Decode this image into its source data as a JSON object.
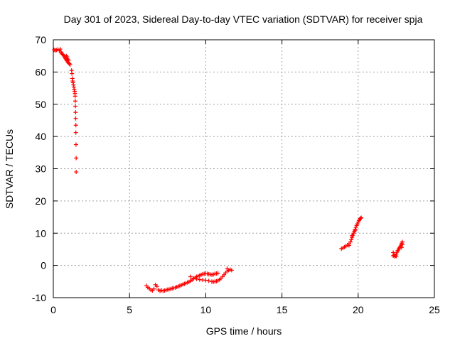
{
  "chart_data": {
    "type": "scatter",
    "title": "Day 301 of 2023, Sidereal Day-to-day VTEC variation (SDTVAR) for receiver spja",
    "xlabel": "GPS time / hours",
    "ylabel": "SDTVAR / TECUs",
    "xlim": [
      0,
      25
    ],
    "ylim": [
      -10,
      70
    ],
    "x_ticks": [
      0,
      5,
      10,
      15,
      20,
      25
    ],
    "y_ticks": [
      -10,
      0,
      10,
      20,
      30,
      40,
      50,
      60,
      70
    ],
    "grid": true,
    "marker": "+",
    "marker_color": "#ff0000",
    "series": [
      {
        "name": "SDTVAR",
        "points": [
          [
            0.05,
            66.9
          ],
          [
            0.12,
            66.7
          ],
          [
            0.2,
            66.8
          ],
          [
            0.3,
            67.0
          ],
          [
            0.4,
            66.6
          ],
          [
            0.45,
            67.1
          ],
          [
            0.5,
            66.2
          ],
          [
            0.55,
            65.8
          ],
          [
            0.6,
            65.5
          ],
          [
            0.65,
            65.3
          ],
          [
            0.7,
            65.0
          ],
          [
            0.75,
            64.6
          ],
          [
            0.8,
            64.2
          ],
          [
            0.85,
            63.8
          ],
          [
            0.9,
            63.5
          ],
          [
            0.95,
            63.1
          ],
          [
            1.0,
            62.8
          ],
          [
            0.85,
            65.0
          ],
          [
            0.9,
            64.7
          ],
          [
            0.95,
            64.0
          ],
          [
            1.0,
            63.6
          ],
          [
            1.05,
            62.6
          ],
          [
            1.1,
            62.3
          ],
          [
            1.2,
            60.5
          ],
          [
            1.22,
            59.5
          ],
          [
            1.25,
            58.0
          ],
          [
            1.27,
            57.2
          ],
          [
            1.3,
            56.7
          ],
          [
            1.32,
            56.0
          ],
          [
            1.35,
            55.3
          ],
          [
            1.37,
            54.6
          ],
          [
            1.4,
            54.0
          ],
          [
            1.42,
            53.3
          ],
          [
            1.43,
            52.5
          ],
          [
            1.44,
            51.0
          ],
          [
            1.45,
            49.4
          ],
          [
            1.46,
            47.5
          ],
          [
            1.47,
            45.6
          ],
          [
            1.48,
            43.5
          ],
          [
            1.48,
            41.2
          ],
          [
            1.49,
            37.5
          ],
          [
            1.5,
            33.3
          ],
          [
            1.5,
            29.0
          ],
          [
            6.1,
            -6.3
          ],
          [
            6.2,
            -6.8
          ],
          [
            6.3,
            -7.2
          ],
          [
            6.4,
            -7.6
          ],
          [
            6.5,
            -7.8
          ],
          [
            6.6,
            -7.3
          ],
          [
            6.7,
            -6.0
          ],
          [
            6.8,
            -6.5
          ],
          [
            6.9,
            -7.6
          ],
          [
            7.0,
            -7.9
          ],
          [
            7.1,
            -7.7
          ],
          [
            7.2,
            -7.9
          ],
          [
            7.3,
            -7.8
          ],
          [
            7.4,
            -7.6
          ],
          [
            7.5,
            -7.5
          ],
          [
            7.6,
            -7.4
          ],
          [
            7.7,
            -7.3
          ],
          [
            7.8,
            -7.1
          ],
          [
            7.9,
            -7.0
          ],
          [
            8.0,
            -6.9
          ],
          [
            8.1,
            -6.7
          ],
          [
            8.2,
            -6.5
          ],
          [
            8.3,
            -6.3
          ],
          [
            8.4,
            -6.1
          ],
          [
            8.5,
            -5.9
          ],
          [
            8.6,
            -5.7
          ],
          [
            8.7,
            -5.5
          ],
          [
            8.8,
            -5.3
          ],
          [
            8.9,
            -5.1
          ],
          [
            9.0,
            -4.8
          ],
          [
            9.1,
            -4.5
          ],
          [
            9.2,
            -4.1
          ],
          [
            9.3,
            -3.8
          ],
          [
            9.4,
            -3.5
          ],
          [
            9.5,
            -3.3
          ],
          [
            9.6,
            -3.1
          ],
          [
            9.7,
            -2.9
          ],
          [
            9.8,
            -2.7
          ],
          [
            9.9,
            -2.6
          ],
          [
            10.0,
            -2.5
          ],
          [
            10.1,
            -2.6
          ],
          [
            10.2,
            -2.7
          ],
          [
            10.3,
            -2.8
          ],
          [
            10.4,
            -2.9
          ],
          [
            10.5,
            -2.8
          ],
          [
            10.6,
            -2.6
          ],
          [
            10.7,
            -2.5
          ],
          [
            10.8,
            -2.4
          ],
          [
            9.0,
            -3.5
          ],
          [
            9.2,
            -4.0
          ],
          [
            9.4,
            -4.2
          ],
          [
            9.6,
            -4.4
          ],
          [
            9.8,
            -4.5
          ],
          [
            10.0,
            -4.6
          ],
          [
            10.2,
            -4.8
          ],
          [
            10.4,
            -5.0
          ],
          [
            10.5,
            -5.1
          ],
          [
            10.6,
            -5.0
          ],
          [
            10.7,
            -4.9
          ],
          [
            10.8,
            -4.7
          ],
          [
            10.9,
            -4.4
          ],
          [
            11.0,
            -4.0
          ],
          [
            11.1,
            -3.5
          ],
          [
            11.2,
            -2.9
          ],
          [
            11.3,
            -2.3
          ],
          [
            11.4,
            -1.8
          ],
          [
            11.5,
            -1.5
          ],
          [
            11.6,
            -1.3
          ],
          [
            11.7,
            -1.5
          ],
          [
            11.4,
            -1.0
          ],
          [
            18.9,
            5.2
          ],
          [
            19.0,
            5.4
          ],
          [
            19.1,
            5.7
          ],
          [
            19.2,
            6.0
          ],
          [
            19.3,
            6.3
          ],
          [
            19.4,
            6.7
          ],
          [
            19.5,
            7.3
          ],
          [
            19.55,
            8.0
          ],
          [
            19.6,
            8.7
          ],
          [
            19.65,
            9.4
          ],
          [
            19.7,
            10.0
          ],
          [
            19.75,
            10.6
          ],
          [
            19.8,
            11.2
          ],
          [
            19.85,
            11.8
          ],
          [
            19.9,
            12.4
          ],
          [
            19.95,
            12.9
          ],
          [
            20.0,
            13.4
          ],
          [
            20.05,
            13.9
          ],
          [
            20.1,
            14.3
          ],
          [
            20.15,
            14.6
          ],
          [
            20.2,
            14.8
          ],
          [
            19.4,
            6.2
          ],
          [
            19.6,
            9.2
          ],
          [
            19.8,
            10.9
          ],
          [
            22.3,
            4.0
          ],
          [
            22.35,
            3.2
          ],
          [
            22.4,
            2.8
          ],
          [
            22.45,
            3.0
          ],
          [
            22.5,
            3.5
          ],
          [
            22.55,
            4.1
          ],
          [
            22.6,
            4.6
          ],
          [
            22.65,
            5.0
          ],
          [
            22.7,
            5.4
          ],
          [
            22.75,
            5.8
          ],
          [
            22.8,
            6.3
          ],
          [
            22.85,
            6.9
          ],
          [
            22.9,
            7.3
          ],
          [
            22.9,
            6.5
          ],
          [
            22.85,
            5.6
          ],
          [
            22.3,
            3.0
          ],
          [
            22.5,
            2.9
          ]
        ]
      }
    ]
  }
}
